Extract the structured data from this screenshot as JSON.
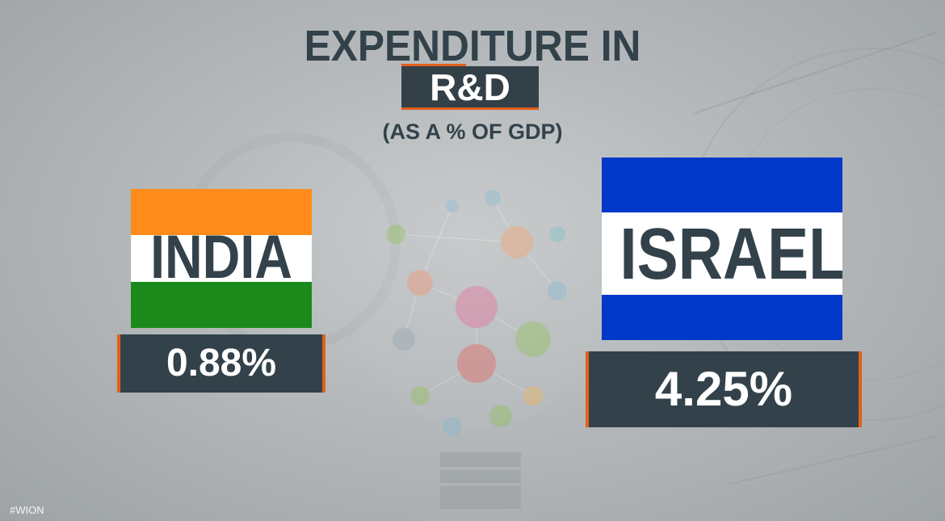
{
  "title": {
    "line1": "EXPENDITURE IN",
    "line2": "R&D",
    "subtitle": "(AS A % OF GDP)"
  },
  "countries": [
    {
      "name": "INDIA",
      "value": "0.88%",
      "flag_colors": [
        "#ff8c1a",
        "#ffffff",
        "#1b8a1b"
      ]
    },
    {
      "name": "ISRAEL",
      "value": "4.25%",
      "flag_colors": [
        "#0038c8",
        "#ffffff",
        "#0038c8"
      ]
    }
  ],
  "watermark": "#WION",
  "colors": {
    "accent": "#e0611a",
    "dark_panel": "#33424a"
  },
  "background_icon": "lightbulb-network-illustration"
}
